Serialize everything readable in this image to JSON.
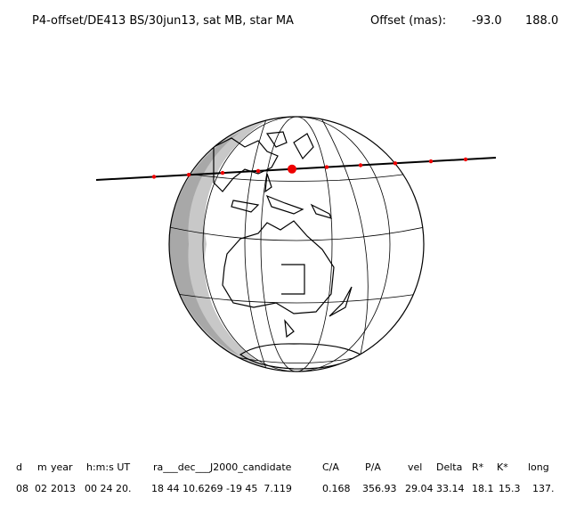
{
  "header": {
    "title": "P4-offset/DE413 BS/30jun13, sat MB, star MA",
    "offset_label": "Offset (mas):",
    "offset_ra": "-93.0",
    "offset_dec": "188.0"
  },
  "table": {
    "columns": [
      "d",
      "m",
      "year",
      "h:m:s UT",
      "ra___dec___J2000_candidate",
      "C/A",
      "P/A",
      "vel",
      "Delta",
      "R*",
      "K*",
      "long"
    ],
    "row": [
      "08",
      "02",
      "2013",
      "00 24 20.",
      "18 44 10.6269 -19 45  7.119",
      "0.168",
      "356.93",
      "29.04",
      "33.14",
      "18.1",
      "15.3",
      "137."
    ]
  }
}
